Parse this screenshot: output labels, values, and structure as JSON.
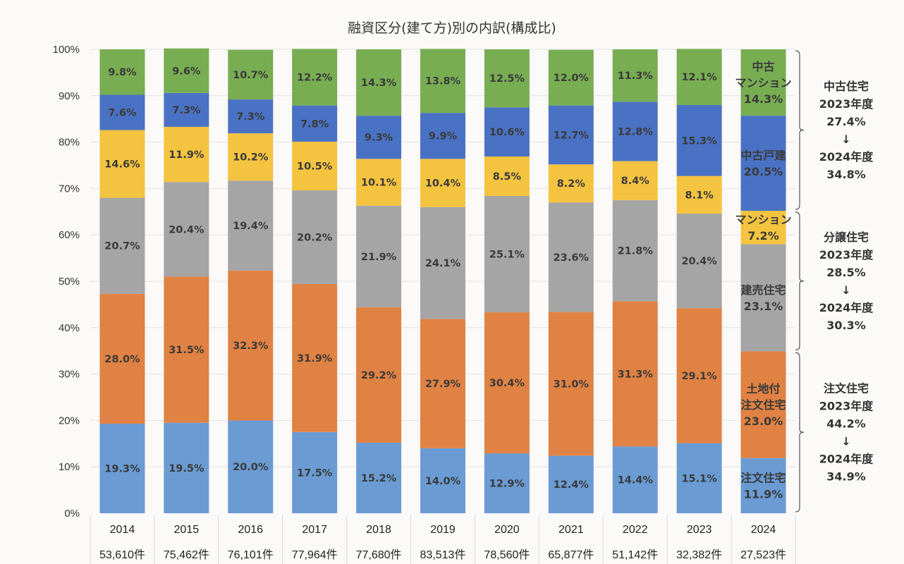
{
  "chart_data": {
    "type": "bar",
    "stacked": true,
    "title": "融資区分(建て方)別の内訳(構成比)",
    "xlabel": "",
    "ylabel": "",
    "ylim": [
      0,
      100
    ],
    "y_ticks": [
      "0%",
      "10%",
      "20%",
      "30%",
      "40%",
      "50%",
      "60%",
      "70%",
      "80%",
      "90%",
      "100%"
    ],
    "grid": true,
    "categories": [
      "2014",
      "2015",
      "2016",
      "2017",
      "2018",
      "2019",
      "2020",
      "2021",
      "2022",
      "2023",
      "2024"
    ],
    "counts": [
      "53,610件",
      "75,462件",
      "76,101件",
      "77,964件",
      "77,680件",
      "83,513件",
      "78,560件",
      "65,877件",
      "51,142件",
      "32,382件",
      "27,523件"
    ],
    "series": [
      {
        "name": "注文住宅",
        "color": "#6a9bd3",
        "values": [
          19.3,
          19.5,
          20.0,
          17.5,
          15.2,
          14.0,
          12.9,
          12.4,
          14.4,
          15.1,
          11.9
        ]
      },
      {
        "name": "土地付注文住宅",
        "color": "#e08243",
        "values": [
          28.0,
          31.5,
          32.3,
          31.9,
          29.2,
          27.9,
          30.4,
          31.0,
          31.3,
          29.1,
          23.0
        ]
      },
      {
        "name": "建売住宅",
        "color": "#a5a5a5",
        "values": [
          20.7,
          20.4,
          19.4,
          20.2,
          21.9,
          24.1,
          25.1,
          23.6,
          21.8,
          20.4,
          23.1
        ]
      },
      {
        "name": "マンション",
        "color": "#f4c33f",
        "values": [
          14.6,
          11.9,
          10.2,
          10.5,
          10.1,
          10.4,
          8.5,
          8.2,
          8.4,
          8.1,
          7.2
        ]
      },
      {
        "name": "中古戸建",
        "color": "#4a72c4",
        "values": [
          7.6,
          7.3,
          7.3,
          7.8,
          9.3,
          9.9,
          10.6,
          12.7,
          12.8,
          15.3,
          20.5
        ]
      },
      {
        "name": "中古マンション",
        "color": "#78ad52",
        "values": [
          9.8,
          9.6,
          10.7,
          12.2,
          14.3,
          13.8,
          12.5,
          12.0,
          11.3,
          12.1,
          14.3
        ]
      }
    ],
    "last_bar_inline_labels": [
      [
        "注文住宅",
        "11.9%"
      ],
      [
        "土地付",
        "注文住宅",
        "23.0%"
      ],
      [
        "建売住宅",
        "23.1%"
      ],
      [
        "マンション",
        "7.2%"
      ],
      [
        "中古戸建",
        "20.5%"
      ],
      [
        "中古",
        "マンション",
        "14.3%"
      ]
    ],
    "annotations": [
      {
        "group": "中古住宅",
        "series_from": 4,
        "series_to": 5,
        "lines": [
          "中古住宅",
          "2023年度",
          "27.4%",
          "↓",
          "2024年度",
          "34.8%"
        ]
      },
      {
        "group": "分譲住宅",
        "series_from": 2,
        "series_to": 3,
        "lines": [
          "分譲住宅",
          "2023年度",
          "28.5%",
          "↓",
          "2024年度",
          "30.3%"
        ]
      },
      {
        "group": "注文住宅",
        "series_from": 0,
        "series_to": 1,
        "lines": [
          "注文住宅",
          "2023年度",
          "44.2%",
          "↓",
          "2024年度",
          "34.9%"
        ]
      }
    ],
    "legend": "none"
  }
}
